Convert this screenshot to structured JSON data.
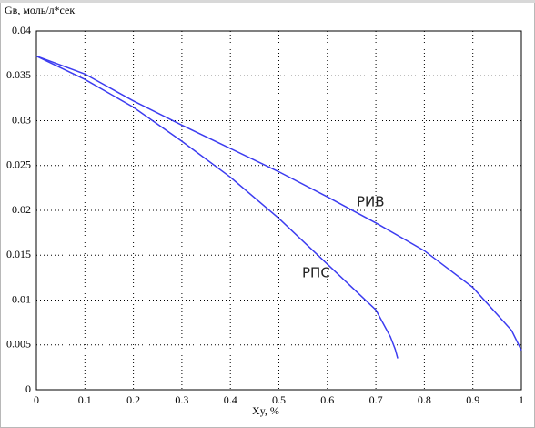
{
  "chart_data": {
    "type": "line",
    "y_label": "Gв, моль/л*сек",
    "x_label": "Xy, %",
    "xlim": [
      0,
      1
    ],
    "ylim": [
      0,
      0.04
    ],
    "xticks": [
      0,
      0.1,
      0.2,
      0.3,
      0.4,
      0.5,
      0.6,
      0.7,
      0.8,
      0.9,
      1
    ],
    "yticks": [
      0,
      0.005,
      0.01,
      0.015,
      0.02,
      0.025,
      0.03,
      0.035,
      0.04
    ],
    "grid": true,
    "series": [
      {
        "name": "РИВ",
        "color": "#3c3cf0",
        "x": [
          0,
          0.1,
          0.2,
          0.3,
          0.4,
          0.5,
          0.6,
          0.7,
          0.8,
          0.9,
          0.95,
          0.98,
          1
        ],
        "values": [
          0.0372,
          0.0352,
          0.0322,
          0.0295,
          0.0269,
          0.0243,
          0.0215,
          0.0186,
          0.0155,
          0.0114,
          0.0084,
          0.0066,
          0.0044
        ]
      },
      {
        "name": "РПС",
        "color": "#3c3cf0",
        "x": [
          0,
          0.1,
          0.2,
          0.3,
          0.4,
          0.5,
          0.6,
          0.7,
          0.73,
          0.74,
          0.745
        ],
        "values": [
          0.0372,
          0.0346,
          0.0315,
          0.0277,
          0.0237,
          0.0191,
          0.014,
          0.0089,
          0.0059,
          0.0045,
          0.0035
        ]
      }
    ]
  }
}
